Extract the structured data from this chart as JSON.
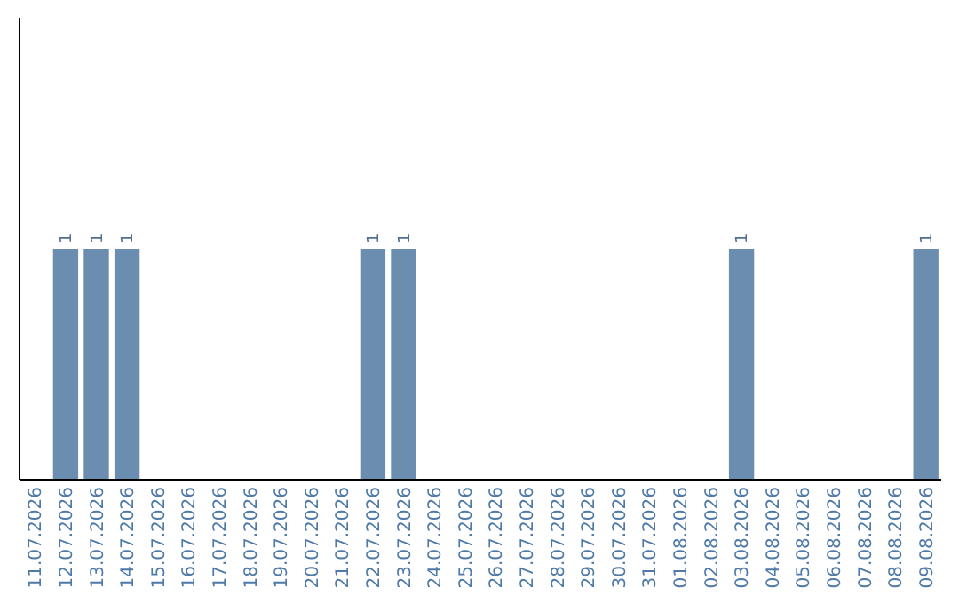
{
  "chart_data": {
    "type": "bar",
    "categories": [
      "11.07.2026",
      "12.07.2026",
      "13.07.2026",
      "14.07.2026",
      "15.07.2026",
      "16.07.2026",
      "17.07.2026",
      "18.07.2026",
      "19.07.2026",
      "20.07.2026",
      "21.07.2026",
      "22.07.2026",
      "23.07.2026",
      "24.07.2026",
      "25.07.2026",
      "26.07.2026",
      "27.07.2026",
      "28.07.2026",
      "29.07.2026",
      "30.07.2026",
      "31.07.2026",
      "01.08.2026",
      "02.08.2026",
      "03.08.2026",
      "04.08.2026",
      "05.08.2026",
      "06.08.2026",
      "07.08.2026",
      "08.08.2026",
      "09.08.2026"
    ],
    "values": [
      0,
      1,
      1,
      1,
      0,
      0,
      0,
      0,
      0,
      0,
      0,
      1,
      1,
      0,
      0,
      0,
      0,
      0,
      0,
      0,
      0,
      0,
      0,
      1,
      0,
      0,
      0,
      0,
      0,
      1
    ],
    "value_labels": [
      null,
      "1",
      "1",
      "1",
      null,
      null,
      null,
      null,
      null,
      null,
      null,
      "1",
      "1",
      null,
      null,
      null,
      null,
      null,
      null,
      null,
      null,
      null,
      null,
      "1",
      null,
      null,
      null,
      null,
      null,
      "1"
    ],
    "color": "#6b8db0",
    "ylim": [
      0,
      2
    ],
    "tick_labels": "x",
    "grid": false
  }
}
